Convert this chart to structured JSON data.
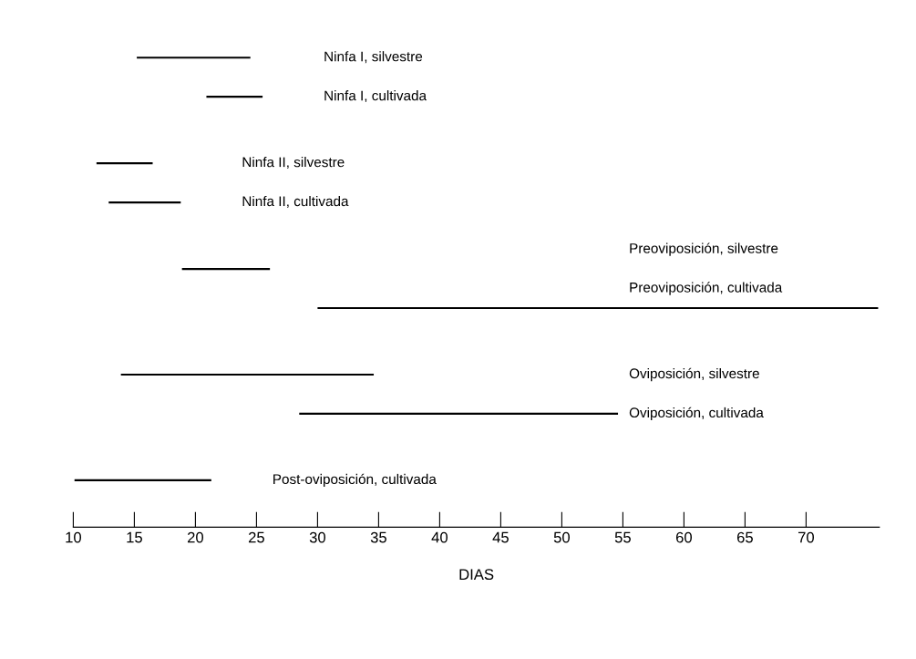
{
  "chart_data": {
    "type": "bar",
    "orientation": "horizontal",
    "xlabel": "DIAS",
    "categories": [
      "Ninfa I, silvestre",
      "Ninfa I, cultivada",
      "Ninfa II, silvestre",
      "Ninfa II, cultivada",
      "Preoviposición, silvestre",
      "Preoviposición, cultivada",
      "Oviposición, silvestre",
      "Oviposición, cultivada",
      "Post-oviposición, cultivada"
    ],
    "base": [
      15.2,
      20.9,
      11.9,
      12.9,
      18.9,
      30.0,
      13.9,
      28.5,
      10.1
    ],
    "values": [
      9.3,
      4.6,
      4.6,
      5.9,
      7.2,
      45.9,
      20.7,
      26.1,
      11.2
    ],
    "color": "#000000",
    "xlim": [
      10,
      76
    ],
    "xticks": [
      10,
      15,
      20,
      25,
      30,
      35,
      40,
      45,
      50,
      55,
      60,
      65,
      70
    ],
    "tick_labels": "x",
    "grid": false
  }
}
